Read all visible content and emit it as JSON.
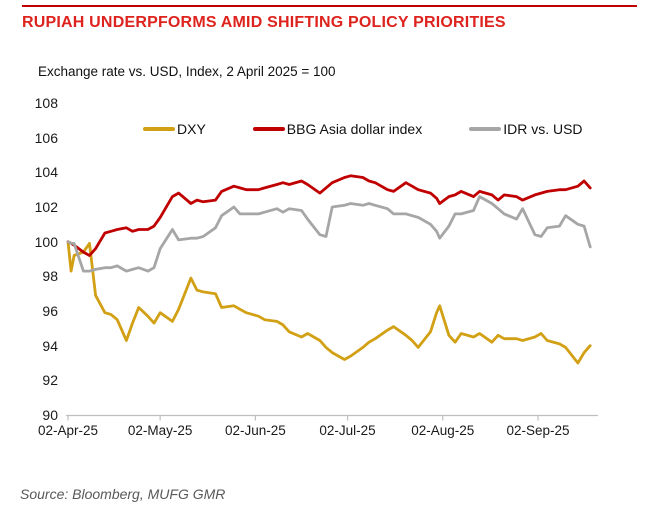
{
  "header": {
    "title": "RUPIAH UNDERPFORMS AMID SHIFTING POLICY PRIORITIES",
    "title_color": "#DE231E",
    "accent_color": "#C00000"
  },
  "chart": {
    "subtitle": "Exchange rate vs. USD, Index, 2 April 2025 = 100"
  },
  "legend": [
    {
      "label": "DXY",
      "color": "#D2A014"
    },
    {
      "label": "BBG Asia dollar index",
      "color": "#C00000"
    },
    {
      "label": "IDR vs. USD",
      "color": "#A6A6A6"
    }
  ],
  "axes": {
    "y_ticks": [
      108,
      106,
      104,
      102,
      100,
      98,
      96,
      94,
      92,
      90
    ],
    "x_ticks": [
      "02-Apr-25",
      "02-May-25",
      "02-Jun-25",
      "02-Jul-25",
      "02-Aug-25",
      "02-Sep-25"
    ],
    "x_tick_days": [
      0,
      30,
      61,
      91,
      122,
      153
    ],
    "axis_color": "#BFBFBF"
  },
  "footer": {
    "source": "Source: Bloomberg, MUFG GMR"
  },
  "chart_data": {
    "type": "line",
    "title": "RUPIAH UNDERPFORMS AMID SHIFTING POLICY PRIORITIES",
    "subtitle": "Exchange rate vs. USD, Index, 2 April 2025 = 100",
    "xlabel": "",
    "ylabel": "Index, 2 April 2025 = 100",
    "ylim": [
      90,
      108
    ],
    "grid": false,
    "legend_position": "top",
    "x": [
      "02-Apr",
      "03-Apr",
      "04-Apr",
      "07-Apr",
      "09-Apr",
      "11-Apr",
      "14-Apr",
      "16-Apr",
      "18-Apr",
      "21-Apr",
      "23-Apr",
      "25-Apr",
      "28-Apr",
      "30-Apr",
      "02-May",
      "06-May",
      "08-May",
      "12-May",
      "14-May",
      "16-May",
      "20-May",
      "22-May",
      "26-May",
      "28-May",
      "30-May",
      "03-Jun",
      "05-Jun",
      "09-Jun",
      "11-Jun",
      "13-Jun",
      "17-Jun",
      "19-Jun",
      "23-Jun",
      "25-Jun",
      "27-Jun",
      "01-Jul",
      "03-Jul",
      "07-Jul",
      "09-Jul",
      "11-Jul",
      "15-Jul",
      "17-Jul",
      "21-Jul",
      "23-Jul",
      "25-Jul",
      "29-Jul",
      "31-Jul",
      "01-Aug",
      "04-Aug",
      "06-Aug",
      "08-Aug",
      "12-Aug",
      "14-Aug",
      "18-Aug",
      "20-Aug",
      "22-Aug",
      "26-Aug",
      "28-Aug",
      "01-Sep",
      "03-Sep",
      "05-Sep",
      "09-Sep",
      "11-Sep",
      "15-Sep",
      "17-Sep",
      "19-Sep"
    ],
    "x_days": [
      0,
      1,
      2,
      5,
      7,
      9,
      12,
      14,
      16,
      19,
      21,
      23,
      26,
      28,
      30,
      34,
      36,
      40,
      42,
      44,
      48,
      50,
      54,
      56,
      58,
      62,
      64,
      68,
      70,
      72,
      76,
      78,
      82,
      84,
      86,
      90,
      92,
      96,
      98,
      100,
      104,
      106,
      110,
      112,
      114,
      118,
      120,
      121,
      124,
      126,
      128,
      132,
      134,
      138,
      140,
      142,
      146,
      148,
      152,
      154,
      156,
      160,
      162,
      166,
      168,
      170
    ],
    "series": [
      {
        "name": "DXY",
        "color": "#D2A014",
        "values": [
          100.0,
          98.3,
          99.2,
          99.4,
          99.9,
          96.9,
          95.9,
          95.8,
          95.5,
          94.3,
          95.3,
          96.2,
          95.7,
          95.3,
          95.9,
          95.4,
          96.1,
          97.9,
          97.2,
          97.1,
          97.0,
          96.2,
          96.3,
          96.1,
          95.9,
          95.7,
          95.5,
          95.4,
          95.2,
          94.8,
          94.5,
          94.7,
          94.3,
          93.9,
          93.6,
          93.2,
          93.4,
          93.9,
          94.2,
          94.4,
          94.9,
          95.1,
          94.6,
          94.3,
          93.9,
          94.8,
          95.9,
          96.3,
          94.6,
          94.2,
          94.7,
          94.5,
          94.7,
          94.2,
          94.6,
          94.4,
          94.4,
          94.3,
          94.5,
          94.7,
          94.3,
          94.1,
          93.9,
          93.0,
          93.6,
          94.0
        ]
      },
      {
        "name": "BBG Asia dollar index",
        "color": "#C00000",
        "values": [
          100.0,
          99.9,
          99.8,
          99.4,
          99.2,
          99.6,
          100.5,
          100.6,
          100.7,
          100.8,
          100.6,
          100.7,
          100.7,
          100.9,
          101.4,
          102.6,
          102.8,
          102.2,
          102.4,
          102.3,
          102.4,
          102.9,
          103.2,
          103.1,
          103.0,
          103.0,
          103.1,
          103.3,
          103.4,
          103.3,
          103.5,
          103.3,
          102.8,
          103.1,
          103.4,
          103.7,
          103.8,
          103.7,
          103.5,
          103.4,
          103.0,
          102.9,
          103.4,
          103.2,
          103.0,
          102.8,
          102.5,
          102.2,
          102.6,
          102.7,
          102.9,
          102.6,
          102.9,
          102.7,
          102.4,
          102.7,
          102.6,
          102.4,
          102.7,
          102.8,
          102.9,
          103.0,
          103.0,
          103.2,
          103.5,
          103.1
        ]
      },
      {
        "name": "IDR vs. USD",
        "color": "#A6A6A6",
        "values": [
          100.0,
          99.9,
          99.9,
          98.3,
          98.3,
          98.4,
          98.5,
          98.5,
          98.6,
          98.3,
          98.4,
          98.5,
          98.3,
          98.5,
          99.6,
          100.7,
          100.1,
          100.2,
          100.2,
          100.3,
          100.8,
          101.5,
          102.0,
          101.6,
          101.6,
          101.6,
          101.7,
          101.9,
          101.7,
          101.9,
          101.8,
          101.3,
          100.4,
          100.3,
          102.0,
          102.1,
          102.2,
          102.1,
          102.2,
          102.1,
          101.9,
          101.6,
          101.6,
          101.5,
          101.4,
          101.0,
          100.6,
          100.2,
          100.9,
          101.6,
          101.6,
          101.8,
          102.6,
          102.2,
          101.9,
          101.6,
          101.3,
          101.9,
          100.4,
          100.3,
          100.8,
          100.9,
          101.5,
          101.0,
          100.9,
          99.7
        ]
      }
    ]
  }
}
